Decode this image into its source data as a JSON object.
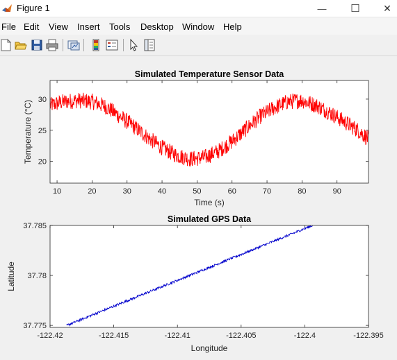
{
  "window": {
    "title": "Figure 1",
    "minimize_glyph": "—",
    "maximize_glyph": "☐",
    "close_glyph": "✕"
  },
  "menu": [
    "File",
    "Edit",
    "View",
    "Insert",
    "Tools",
    "Desktop",
    "Window",
    "Help"
  ],
  "toolbar_icons": [
    "new-figure-icon",
    "open-file-icon",
    "save-icon",
    "print-icon",
    "link-plot-icon",
    "insert-colorbar-icon",
    "insert-legend-icon",
    "edit-plot-arrow-icon",
    "property-inspector-icon"
  ],
  "colors": {
    "temperature_line": "#ff0000",
    "gps_line": "#0000cc",
    "axes_bg": "#ffffff",
    "figure_bg": "#f0f0f0"
  },
  "chart_data": [
    {
      "type": "line",
      "title": "Simulated Temperature Sensor Data",
      "xlabel": "Time (s)",
      "ylabel": "Temperature (°C)",
      "xlim": [
        8,
        99
      ],
      "ylim": [
        16.5,
        33
      ],
      "xticks": [
        10,
        20,
        30,
        40,
        50,
        60,
        70,
        80,
        90
      ],
      "yticks": [
        20,
        25,
        30
      ],
      "grid": false,
      "series": [
        {
          "x": [
            8,
            12,
            16,
            20,
            24,
            28,
            32,
            36,
            40,
            44,
            48,
            52,
            56,
            60,
            64,
            68,
            72,
            76,
            80,
            84,
            88,
            92,
            96,
            99
          ],
          "y": [
            29,
            29.6,
            29.8,
            29.6,
            28.8,
            27.2,
            25.6,
            23.8,
            22.2,
            21,
            20.4,
            20.6,
            21.6,
            23.2,
            25.2,
            27.2,
            28.6,
            29.6,
            29.8,
            29,
            27.8,
            26.4,
            25,
            23.6
          ],
          "noise_amplitude": 1.3
        }
      ]
    },
    {
      "type": "line",
      "title": "Simulated GPS Data",
      "xlabel": "Longitude",
      "ylabel": "Latitude",
      "xlim": [
        -122.42,
        -122.395
      ],
      "ylim": [
        37.7748,
        37.785
      ],
      "xticks": [
        -122.42,
        -122.415,
        -122.41,
        -122.405,
        -122.4,
        -122.395
      ],
      "xtick_labels": [
        "-122.42",
        "-122.415",
        "-122.41",
        "-122.405",
        "-122.4",
        "-122.395"
      ],
      "yticks": [
        37.775,
        37.78,
        37.785
      ],
      "ytick_labels": [
        "37.775",
        "37.78",
        "37.785"
      ],
      "grid": false,
      "series": [
        {
          "x": [
            -122.4187,
            -122.3994
          ],
          "y": [
            37.775,
            37.785
          ],
          "noise_amplitude": 0.00012
        }
      ]
    }
  ]
}
